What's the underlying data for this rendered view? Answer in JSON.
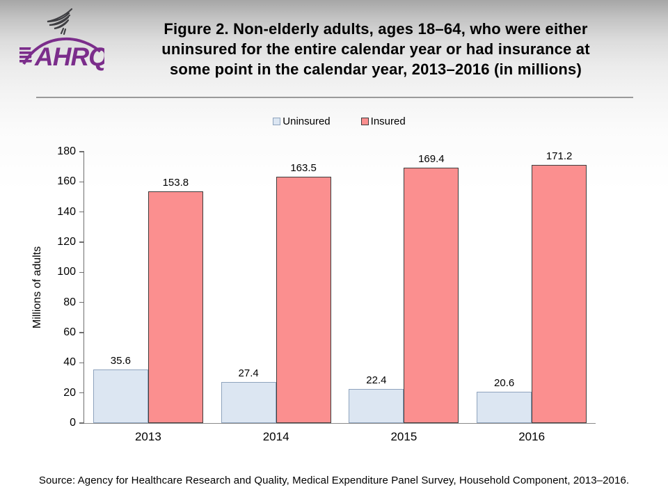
{
  "header": {
    "logo_org": "AHRQ",
    "title_lines": [
      "Figure 2. Non-elderly adults, ages 18–64, who were either",
      "uninsured for the entire calendar year or had insurance at",
      "some point in the calendar year, 2013–2016 (in millions)"
    ]
  },
  "chart_data": {
    "type": "bar",
    "title": "Figure 2. Non-elderly adults, ages 18–64, who were either uninsured for the entire calendar year or had insurance at some point in the calendar year, 2013–2016 (in millions)",
    "categories": [
      "2013",
      "2014",
      "2015",
      "2016"
    ],
    "series": [
      {
        "name": "Uninsured",
        "values": [
          35.6,
          27.4,
          22.4,
          20.6
        ],
        "fill": "#dce6f2",
        "border": "#8ea3bd"
      },
      {
        "name": "Insured",
        "values": [
          153.8,
          163.5,
          169.4,
          171.2
        ],
        "fill": "#fb8f8f",
        "border": "#3d3d3d"
      }
    ],
    "xlabel": "",
    "ylabel": "Millions of adults",
    "ylim": [
      0,
      180
    ],
    "ytick_step": 20,
    "legend_position": "top-center",
    "grid": false,
    "value_labels": true
  },
  "footer": {
    "source": "Source: Agency for Healthcare Research and Quality, Medical Expenditure Panel Survey, Household Component, 2013–2016."
  },
  "colors": {
    "uninsured": "#dce6f2",
    "insured": "#fb8f8f",
    "logo_purple": "#7b2d8b",
    "axis_gray": "#6e6e6e"
  }
}
